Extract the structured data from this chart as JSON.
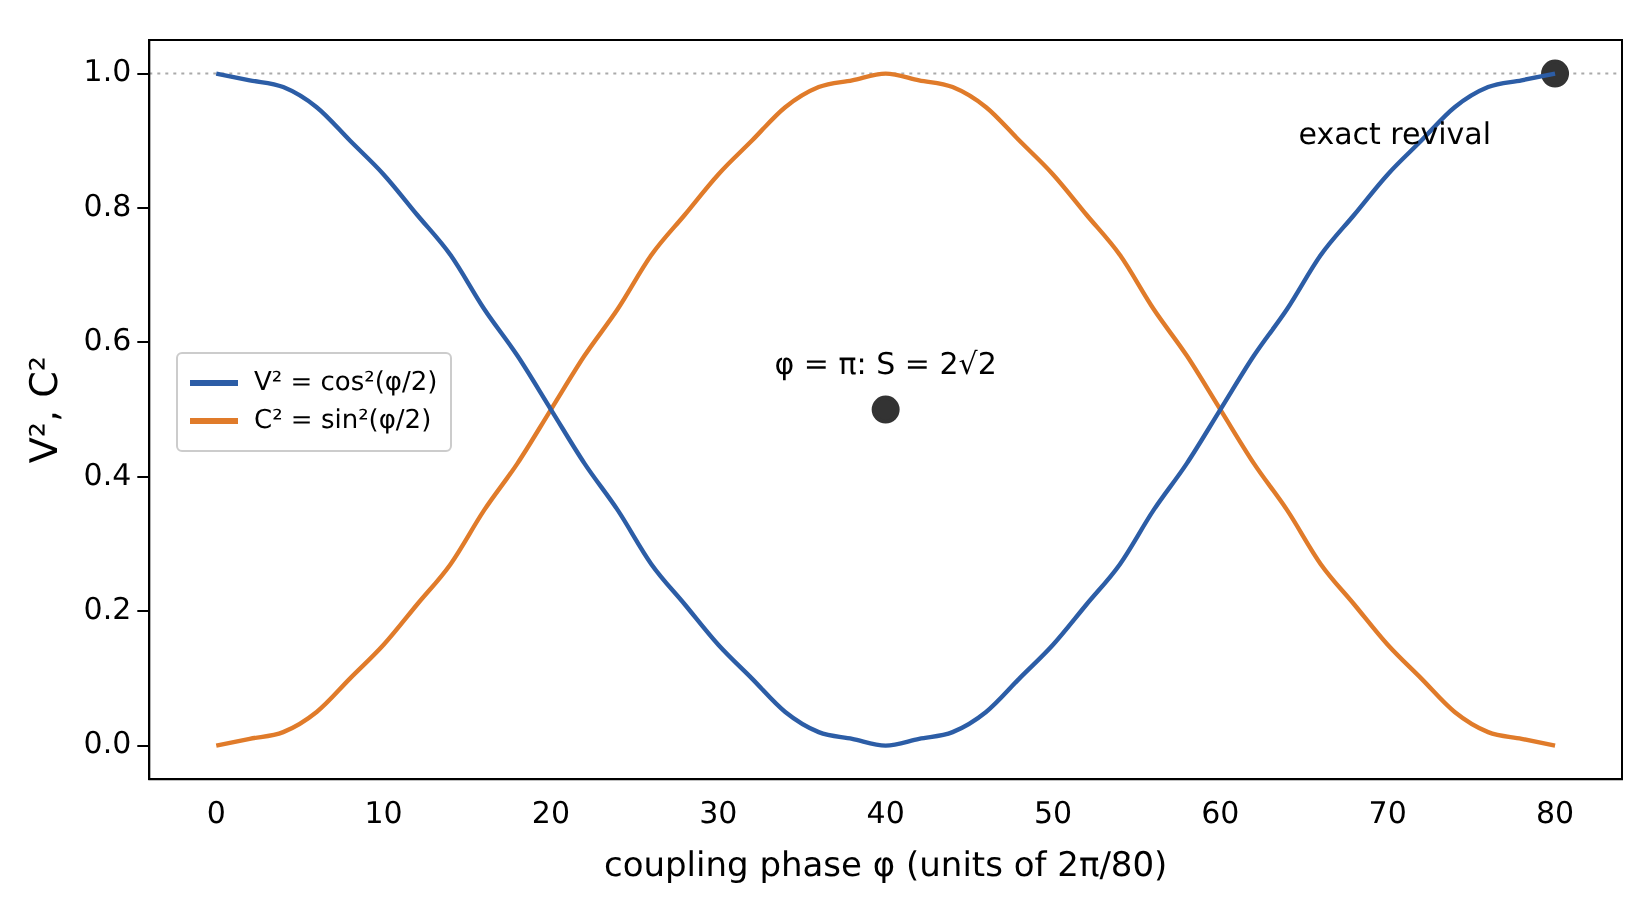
{
  "chart_data": {
    "type": "line",
    "xlabel": "coupling phase φ (units of 2π/80)",
    "ylabel": "V², C²",
    "x": [
      0,
      2,
      4,
      6,
      8,
      10,
      12,
      14,
      16,
      18,
      20,
      22,
      24,
      26,
      28,
      30,
      32,
      34,
      36,
      38,
      40,
      42,
      44,
      46,
      48,
      50,
      52,
      54,
      56,
      58,
      60,
      62,
      64,
      66,
      68,
      70,
      72,
      74,
      76,
      78,
      80
    ],
    "series": [
      {
        "name": "V² = cos²(φ/2)",
        "color": "#2c5da6",
        "values": [
          1,
          0.99,
          0.98,
          0.95,
          0.9,
          0.85,
          0.79,
          0.73,
          0.65,
          0.58,
          0.5,
          0.42,
          0.35,
          0.27,
          0.21,
          0.15,
          0.1,
          0.05,
          0.02,
          0.01,
          0,
          0.01,
          0.02,
          0.05,
          0.1,
          0.15,
          0.21,
          0.27,
          0.35,
          0.42,
          0.5,
          0.58,
          0.65,
          0.73,
          0.79,
          0.85,
          0.9,
          0.95,
          0.98,
          0.99,
          1
        ]
      },
      {
        "name": "C² = sin²(φ/2)",
        "color": "#e07b2a",
        "values": [
          0,
          0.01,
          0.02,
          0.05,
          0.1,
          0.15,
          0.21,
          0.27,
          0.35,
          0.42,
          0.5,
          0.58,
          0.65,
          0.73,
          0.79,
          0.85,
          0.9,
          0.95,
          0.98,
          0.99,
          1,
          0.99,
          0.98,
          0.95,
          0.9,
          0.85,
          0.79,
          0.73,
          0.65,
          0.58,
          0.5,
          0.42,
          0.35,
          0.27,
          0.21,
          0.15,
          0.1,
          0.05,
          0.02,
          0.01,
          0
        ]
      },
      {
        "type": "scatter",
        "color": "#333333",
        "x": [
          40
        ],
        "values": [
          0.5
        ],
        "marker": "circle"
      },
      {
        "type": "scatter",
        "color": "#333333",
        "x": [
          80
        ],
        "values": [
          1.0
        ],
        "marker": "circle"
      }
    ],
    "annotations": [
      {
        "text": "φ = π: S = 2√2",
        "x": 40,
        "y": 0.5
      },
      {
        "text": "exact revival",
        "x": 80,
        "y": 1.0
      }
    ],
    "ref_lines": [
      {
        "axis": "y",
        "value": 1.0,
        "color": "#aaaaaa",
        "line_style": "dotted"
      }
    ],
    "xlim": [
      -4,
      84
    ],
    "xticks": [
      0,
      10,
      20,
      30,
      40,
      50,
      60,
      70,
      80
    ],
    "ylim": [
      -0.05,
      1.05
    ],
    "yticks": [
      {
        "value": 0,
        "label": "0.0"
      },
      {
        "value": 0.2,
        "label": "0.2"
      },
      {
        "value": 0.4,
        "label": "0.4"
      },
      {
        "value": 0.6,
        "label": "0.6"
      },
      {
        "value": 0.8,
        "label": "0.8"
      },
      {
        "value": 1,
        "label": "1.0"
      }
    ],
    "grid": false,
    "legend": "left"
  }
}
